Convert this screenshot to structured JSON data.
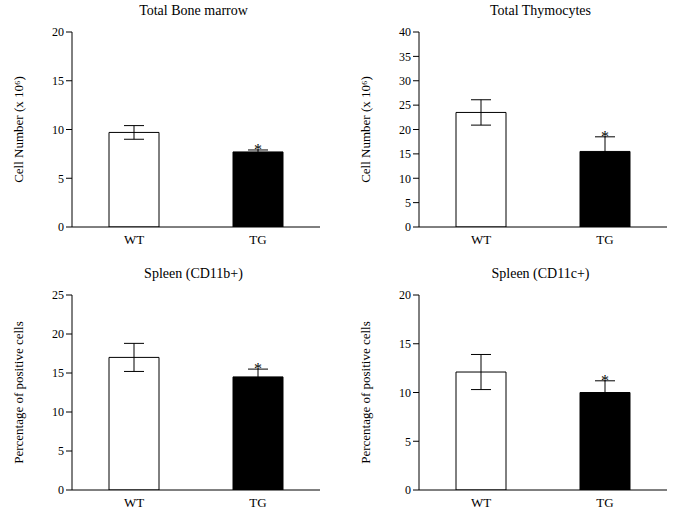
{
  "chart_data": [
    {
      "type": "bar",
      "title": "Total Bone marrow",
      "y_label": "Cell Number (x 10⁶)",
      "categories": [
        "WT",
        "TG"
      ],
      "values": [
        9.7,
        7.7
      ],
      "errors": [
        0.7,
        0.2
      ],
      "colors": [
        "#ffffff",
        "#000000"
      ],
      "ylim": [
        0,
        20
      ],
      "yticks": [
        0,
        5,
        10,
        15,
        20
      ],
      "grid": false,
      "annotations": [
        {
          "category": "TG",
          "text": "*"
        }
      ]
    },
    {
      "type": "bar",
      "title": "Total Thymocytes",
      "y_label": "Cell Number (x 10⁶)",
      "categories": [
        "WT",
        "TG"
      ],
      "values": [
        23.5,
        15.5
      ],
      "errors": [
        2.6,
        3.0
      ],
      "colors": [
        "#ffffff",
        "#000000"
      ],
      "ylim": [
        0,
        40
      ],
      "yticks": [
        0,
        5,
        10,
        15,
        20,
        25,
        30,
        35,
        40
      ],
      "grid": false,
      "annotations": [
        {
          "category": "TG",
          "text": "*"
        }
      ]
    },
    {
      "type": "bar",
      "title": "Spleen (CD11b+)",
      "y_label": "Percentage of positive cells",
      "categories": [
        "WT",
        "TG"
      ],
      "values": [
        17.0,
        14.5
      ],
      "errors": [
        1.8,
        1.0
      ],
      "colors": [
        "#ffffff",
        "#000000"
      ],
      "ylim": [
        0,
        25
      ],
      "yticks": [
        0,
        5,
        10,
        15,
        20,
        25
      ],
      "grid": false,
      "annotations": [
        {
          "category": "TG",
          "text": "*"
        }
      ]
    },
    {
      "type": "bar",
      "title": "Spleen (CD11c+)",
      "y_label": "Percentage of positive cells",
      "categories": [
        "WT",
        "TG"
      ],
      "values": [
        12.1,
        10.0
      ],
      "errors": [
        1.8,
        1.2
      ],
      "colors": [
        "#ffffff",
        "#000000"
      ],
      "ylim": [
        0,
        20
      ],
      "yticks": [
        0,
        5,
        10,
        15,
        20
      ],
      "grid": false,
      "annotations": [
        {
          "category": "TG",
          "text": "*"
        }
      ]
    }
  ]
}
